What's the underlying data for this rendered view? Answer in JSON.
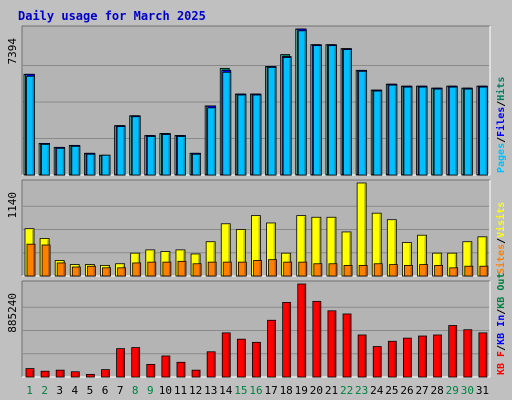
{
  "chart_data": {
    "type": "bar",
    "title": "Daily usage for March 2025",
    "categories": [
      "1",
      "2",
      "3",
      "4",
      "5",
      "6",
      "7",
      "8",
      "9",
      "10",
      "11",
      "12",
      "13",
      "14",
      "15",
      "16",
      "17",
      "18",
      "19",
      "20",
      "21",
      "22",
      "23",
      "24",
      "25",
      "26",
      "27",
      "28",
      "29",
      "30",
      "31"
    ],
    "weekend_days": [
      "1",
      "2",
      "8",
      "9",
      "15",
      "16",
      "22",
      "23",
      "29",
      "30"
    ],
    "colors": {
      "background": "#c0c0c0",
      "plot_background": "#b4b4b4",
      "title": "#0000cc",
      "grid": "#8a8a8a",
      "hits": "#008060",
      "files": "#0000ff",
      "pages": "#00c0ff",
      "visits": "#ffff00",
      "sites": "#ff8000",
      "kb_in": "#0000ff",
      "kb_out": "#008040",
      "kb_f": "#ff0000",
      "weekday_label": "#000000",
      "weekend_label": "#008040"
    },
    "panels": [
      {
        "id": "hits",
        "ymax": 7394,
        "ymax_label": "7394",
        "legend": [
          "Pages",
          "Files",
          "Hits"
        ],
        "series": [
          {
            "name": "Hits",
            "color": "#008060",
            "values": [
              5100,
              1600,
              1400,
              1500,
              1100,
              1000,
              2500,
              3000,
              2000,
              2100,
              2000,
              1100,
              3500,
              5400,
              4100,
              4100,
              5500,
              6100,
              7394,
              6600,
              6600,
              6400,
              5300,
              4300,
              4600,
              4500,
              4500,
              4400,
              4500,
              4400,
              4500
            ]
          },
          {
            "name": "Files",
            "color": "#0000ff",
            "values": [
              5100,
              1600,
              1400,
              1500,
              1100,
              1000,
              2500,
              3000,
              2000,
              2100,
              2000,
              1100,
              3500,
              5300,
              4100,
              4100,
              5500,
              6000,
              7394,
              6600,
              6600,
              6400,
              5300,
              4300,
              4600,
              4500,
              4500,
              4400,
              4500,
              4400,
              4500
            ]
          },
          {
            "name": "Pages",
            "color": "#00c0ff",
            "values": [
              5000,
              1550,
              1350,
              1450,
              1050,
              1000,
              2450,
              2950,
              1950,
              2050,
              1950,
              1050,
              3400,
              5200,
              4050,
              4050,
              5450,
              5950,
              7300,
              6550,
              6550,
              6350,
              5250,
              4250,
              4550,
              4450,
              4450,
              4350,
              4450,
              4350,
              4450
            ]
          }
        ]
      },
      {
        "id": "visits",
        "ymax": 1140,
        "ymax_label": "1140",
        "legend": [
          "Sites",
          "Visits"
        ],
        "series": [
          {
            "name": "Visits",
            "color": "#ffff00",
            "values": [
              580,
              460,
              190,
              140,
              140,
              130,
              150,
              280,
              320,
              300,
              320,
              270,
              420,
              640,
              570,
              740,
              650,
              280,
              740,
              720,
              720,
              540,
              1140,
              770,
              690,
              410,
              500,
              280,
              280,
              420,
              480
            ]
          },
          {
            "name": "Sites",
            "color": "#ff8000",
            "values": [
              390,
              380,
              160,
              110,
              120,
              100,
              100,
              160,
              170,
              170,
              180,
              150,
              170,
              170,
              170,
              190,
              200,
              170,
              170,
              150,
              150,
              130,
              130,
              150,
              140,
              130,
              140,
              130,
              100,
              120,
              120
            ]
          }
        ]
      },
      {
        "id": "kbytes",
        "ymax": 885240,
        "ymax_label": "885240",
        "legend": [
          "KB F",
          "KB In",
          "KB Out"
        ],
        "series": [
          {
            "name": "KB F",
            "color": "#ff0000",
            "values": [
              80000,
              55000,
              65000,
              50000,
              25000,
              70000,
              270000,
              280000,
              120000,
              200000,
              140000,
              65000,
              240000,
              420000,
              360000,
              330000,
              540000,
              710000,
              885240,
              720000,
              630000,
              600000,
              400000,
              290000,
              340000,
              370000,
              390000,
              400000,
              490000,
              450000,
              420000
            ]
          }
        ]
      }
    ]
  }
}
